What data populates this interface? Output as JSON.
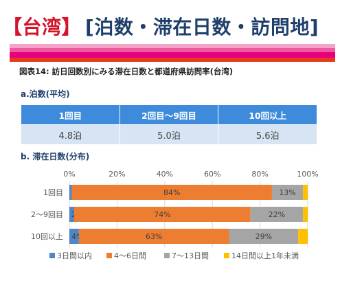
{
  "page_title": {
    "part1": "【台湾】",
    "part2": "[泊数・滞在日数・訪問地]"
  },
  "figure_caption": "図表14: 訪日回数別にみる滞在日数と都道府県訪問率(台湾)",
  "section_a_heading": "a.泊数(平均)",
  "section_b_heading": "b. 滞在日数(分布)",
  "nights_table": {
    "headers": [
      "1回目",
      "2回目～9回目",
      "10回以上"
    ],
    "values": [
      "4.8泊",
      "5.0泊",
      "5.6泊"
    ]
  },
  "colors": {
    "title_red": "#d4142a",
    "title_navy": "#1f3f6b",
    "table_header": "#3e8bdc",
    "table_cell": "#d6e4f3",
    "series": [
      "#4f86c6",
      "#ed7d31",
      "#a5a5a5",
      "#ffc000"
    ]
  },
  "chart_data": {
    "type": "bar",
    "orientation": "horizontal",
    "stacked": true,
    "percent": true,
    "categories": [
      "1回目",
      "2～9回目",
      "10回以上"
    ],
    "x_ticks": [
      "0%",
      "20%",
      "40%",
      "60%",
      "80%",
      "100%"
    ],
    "xlim": [
      0,
      100
    ],
    "grid": true,
    "legend_position": "bottom",
    "series": [
      {
        "name": "3日間以内",
        "values": [
          1,
          2,
          4
        ],
        "labels": [
          "1%",
          "2%",
          "4%"
        ]
      },
      {
        "name": "4～6日間",
        "values": [
          84,
          74,
          63
        ],
        "labels": [
          "84%",
          "74%",
          "63%"
        ]
      },
      {
        "name": "7～13日間",
        "values": [
          13,
          22,
          29
        ],
        "labels": [
          "13%",
          "22%",
          "29%"
        ]
      },
      {
        "name": "14日間以上1年未満",
        "values": [
          2,
          2,
          4
        ],
        "labels": [
          "",
          "",
          ""
        ]
      }
    ]
  }
}
